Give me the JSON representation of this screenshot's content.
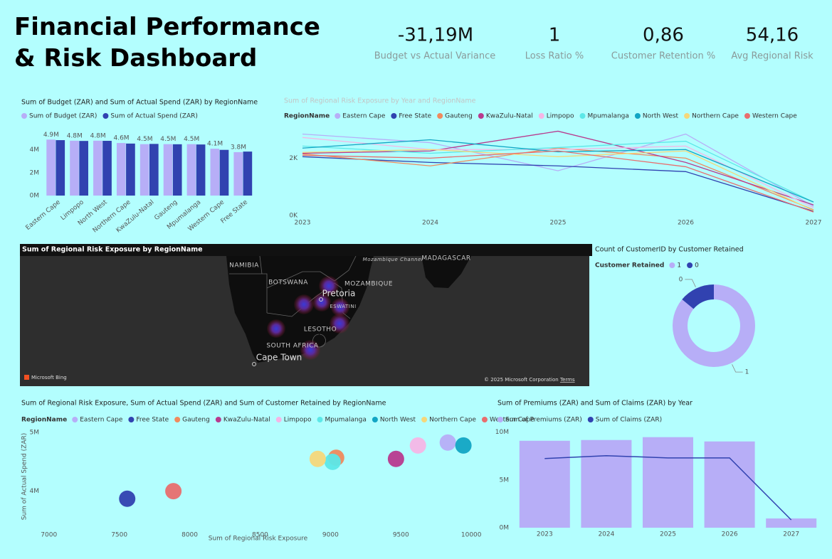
{
  "title": "Financial Performance & Risk Dashboard",
  "kpis": [
    {
      "value": "-31,19M",
      "label": "Budget vs Actual Variance"
    },
    {
      "value": "1",
      "label": "Loss Ratio %"
    },
    {
      "value": "0,86",
      "label": "Customer Retention %"
    },
    {
      "value": "54,16",
      "label": "Avg Regional Risk"
    }
  ],
  "map": {
    "title": "Sum of Regional Risk Exposure by RegionName",
    "labels": [
      "NAMIBIA",
      "BOTSWANA",
      "MOZAMBIQUE",
      "Pretoria",
      "ESWATINI",
      "LESOTHO",
      "SOUTH AFRICA",
      "Cape Town",
      "Mozambique Channel",
      "MADAGASCAR"
    ],
    "attribution": "Microsoft Bing",
    "copyright": "© 2025 Microsoft Corporation",
    "terms": "Terms"
  },
  "chart_data": [
    {
      "type": "bar",
      "title": "Sum of Budget (ZAR) and Sum of Actual Spend (ZAR) by RegionName",
      "categories": [
        "Eastern Cape",
        "Limpopo",
        "North West",
        "Northern Cape",
        "KwaZulu-Natal",
        "Gauteng",
        "Mpumalanga",
        "Western Cape",
        "Free State"
      ],
      "series": [
        {
          "name": "Sum of Budget (ZAR)",
          "color": "#b7aef7",
          "values": [
            4900000,
            4800000,
            4800000,
            4600000,
            4500000,
            4500000,
            4500000,
            4100000,
            3800000
          ],
          "value_labels": [
            "4.9M",
            "4.8M",
            "4.8M",
            "4.6M",
            "4.5M",
            "4.5M",
            "4.5M",
            "4.1M",
            "3.8M"
          ]
        },
        {
          "name": "Sum of Actual Spend (ZAR)",
          "color": "#3142b0",
          "values": [
            4850000,
            4780000,
            4790000,
            4550000,
            4520000,
            4490000,
            4470000,
            4000000,
            3850000
          ]
        }
      ],
      "ylim": [
        0,
        5600000
      ],
      "yticks": [
        {
          "value": 0,
          "label": "0M"
        },
        {
          "value": 2000000,
          "label": "2M"
        },
        {
          "value": 4000000,
          "label": "4M"
        }
      ]
    },
    {
      "type": "line",
      "title": "Sum of Regional Risk Exposure by Year and RegionName",
      "legend_title": "RegionName",
      "x": [
        2023,
        2024,
        2025,
        2026,
        2027
      ],
      "series": [
        {
          "name": "Eastern Cape",
          "color": "#b7aef7",
          "values": [
            2840,
            2540,
            1560,
            2840,
            320
          ]
        },
        {
          "name": "Free State",
          "color": "#3142b0",
          "values": [
            2050,
            1850,
            1730,
            1530,
            150
          ]
        },
        {
          "name": "Gauteng",
          "color": "#f08a5d",
          "values": [
            2150,
            1730,
            2350,
            2000,
            200
          ]
        },
        {
          "name": "KwaZulu-Natal",
          "color": "#b83a8e",
          "values": [
            2170,
            2250,
            2940,
            1850,
            370
          ]
        },
        {
          "name": "Limpopo",
          "color": "#f5b6e6",
          "values": [
            2720,
            2300,
            2300,
            2420,
            270
          ]
        },
        {
          "name": "Mpumalanga",
          "color": "#5ce8e8",
          "values": [
            2420,
            2170,
            2370,
            2590,
            470
          ]
        },
        {
          "name": "North West",
          "color": "#12a5c4",
          "values": [
            2350,
            2640,
            2220,
            2300,
            470
          ]
        },
        {
          "name": "Northern Cape",
          "color": "#f5d77a",
          "values": [
            2200,
            2300,
            2050,
            2250,
            170
          ]
        },
        {
          "name": "Western Cape",
          "color": "#e86e6e",
          "values": [
            2100,
            2000,
            2250,
            1700,
            120
          ]
        }
      ],
      "xlim": [
        2023,
        2027
      ],
      "xticks": [
        2023,
        2024,
        2025,
        2026,
        2027
      ],
      "ylim": [
        0,
        3050
      ],
      "yticks": [
        {
          "value": 0,
          "label": "0K"
        },
        {
          "value": 2000,
          "label": "2K"
        }
      ]
    },
    {
      "type": "pie",
      "title": "Count of CustomerID by Customer Retained",
      "legend_title": "Customer Retained",
      "categories": [
        "1",
        "0"
      ],
      "values": [
        86,
        14
      ],
      "colors": [
        "#b7aef7",
        "#3142b0"
      ],
      "donut": true
    },
    {
      "type": "scatter",
      "title": "Sum of Regional Risk Exposure, Sum of Actual Spend (ZAR) and Sum of Customer Retained by RegionName",
      "legend_title": "RegionName",
      "x_label": "Sum of Regional Risk Exposure",
      "y_label": "Sum of Actual Spend (ZAR)",
      "series": [
        {
          "name": "Eastern Cape",
          "color": "#b7aef7",
          "x": [
            9833
          ],
          "values": [
            4830000
          ]
        },
        {
          "name": "Free State",
          "color": "#3142b0",
          "x": [
            7556
          ],
          "values": [
            3870000
          ]
        },
        {
          "name": "Gauteng",
          "color": "#f08a5d",
          "x": [
            9040
          ],
          "values": [
            4570000
          ]
        },
        {
          "name": "KwaZulu-Natal",
          "color": "#b83a8e",
          "x": [
            9465
          ],
          "values": [
            4550000
          ]
        },
        {
          "name": "Limpopo",
          "color": "#f5b6e6",
          "x": [
            9621
          ],
          "values": [
            4780000
          ]
        },
        {
          "name": "Mpumalanga",
          "color": "#5ce8e8",
          "x": [
            9015
          ],
          "values": [
            4500000
          ]
        },
        {
          "name": "North West",
          "color": "#12a5c4",
          "x": [
            9944
          ],
          "values": [
            4780000
          ]
        },
        {
          "name": "Northern Cape",
          "color": "#f5d77a",
          "x": [
            8909
          ],
          "values": [
            4550000
          ]
        },
        {
          "name": "Western Cape",
          "color": "#e86e6e",
          "x": [
            7884
          ],
          "values": [
            4000000
          ]
        }
      ],
      "xlim": [
        6880,
        10090
      ],
      "xticks": [
        7000,
        7500,
        8000,
        8500,
        9000,
        9500,
        10000
      ],
      "ylim": [
        3400000,
        5100000
      ],
      "yticks": [
        {
          "value": 4000000,
          "label": "4M"
        },
        {
          "value": 5000000,
          "label": "5M"
        }
      ]
    },
    {
      "type": "combo",
      "title": "Sum of Premiums (ZAR) and Sum of Claims (ZAR) by Year",
      "categories": [
        "2023",
        "2024",
        "2025",
        "2026",
        "2027"
      ],
      "series": [
        {
          "name": "Sum of Premiums (ZAR)",
          "type": "bar",
          "color": "#b7aef7",
          "values": [
            9100000,
            9180000,
            9480000,
            9030000,
            970000
          ]
        },
        {
          "name": "Sum of Claims (ZAR)",
          "type": "line",
          "color": "#3142b0",
          "values": [
            7240000,
            7540000,
            7310000,
            7310000,
            820000
          ]
        }
      ],
      "ylim": [
        0,
        10200000
      ],
      "yticks": [
        {
          "value": 0,
          "label": "0M"
        },
        {
          "value": 5000000,
          "label": "5M"
        },
        {
          "value": 10000000,
          "label": "10M"
        }
      ]
    }
  ]
}
